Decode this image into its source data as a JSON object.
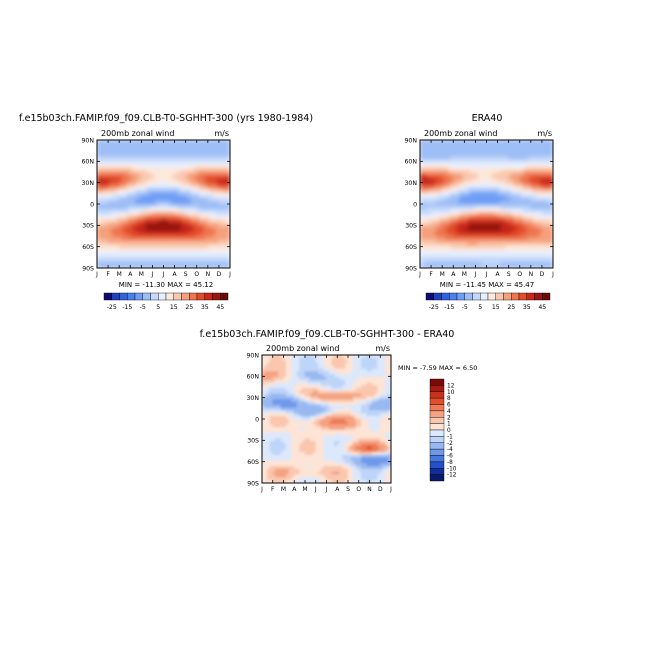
{
  "figure": {
    "shared": {
      "subtitle_left": "200mb zonal wind",
      "units": "m/s",
      "lat_ticks": [
        "90N",
        "60N",
        "30N",
        "0",
        "30S",
        "60S",
        "90S"
      ],
      "month_ticks": [
        "J",
        "F",
        "M",
        "A",
        "M",
        "J",
        "J",
        "A",
        "S",
        "O",
        "N",
        "D",
        "J"
      ]
    }
  },
  "chart_data": [
    {
      "type": "heatmap",
      "id": "model",
      "title": "f.e15b03ch.FAMIP.f09_f09.CLB-T0-SGHHT-300 (yrs 1980-1984)",
      "xlabel": "",
      "ylabel": "",
      "stats": "MIN = -11.30  MAX =  45.12",
      "min": -11.3,
      "max": 45.12,
      "colorbar": {
        "orientation": "horizontal",
        "labels": [
          "-25",
          "-15",
          "-5",
          "5",
          "15",
          "25",
          "35",
          "45"
        ],
        "levels": [
          -25,
          -20,
          -15,
          -10,
          -5,
          0,
          5,
          10,
          15,
          20,
          25,
          30,
          35,
          40,
          45
        ],
        "colors": [
          "#0d0a78",
          "#1f3fbf",
          "#2e62e0",
          "#4a80f0",
          "#6f9ef5",
          "#9dbdf6",
          "#c3d8fa",
          "#e6efff",
          "#fde8dc",
          "#f9c8ae",
          "#f5a07c",
          "#ee754f",
          "#e24b2c",
          "#c6281a",
          "#97160f",
          "#6b0b07"
        ]
      },
      "x_range": [
        "Jan",
        "Jan"
      ],
      "y_range": [
        -90,
        90
      ]
    },
    {
      "type": "heatmap",
      "id": "obs",
      "title": "ERA40",
      "xlabel": "",
      "ylabel": "",
      "stats": "MIN = -11.45  MAX =  45.47",
      "min": -11.45,
      "max": 45.47,
      "colorbar": {
        "orientation": "horizontal",
        "labels": [
          "-25",
          "-15",
          "-5",
          "5",
          "15",
          "25",
          "35",
          "45"
        ],
        "levels": [
          -25,
          -20,
          -15,
          -10,
          -5,
          0,
          5,
          10,
          15,
          20,
          25,
          30,
          35,
          40,
          45
        ],
        "colors": [
          "#0d0a78",
          "#1f3fbf",
          "#2e62e0",
          "#4a80f0",
          "#6f9ef5",
          "#9dbdf6",
          "#c3d8fa",
          "#e6efff",
          "#fde8dc",
          "#f9c8ae",
          "#f5a07c",
          "#ee754f",
          "#e24b2c",
          "#c6281a",
          "#97160f",
          "#6b0b07"
        ]
      },
      "x_range": [
        "Jan",
        "Jan"
      ],
      "y_range": [
        -90,
        90
      ]
    },
    {
      "type": "heatmap",
      "id": "diff",
      "title": "f.e15b03ch.FAMIP.f09_f09.CLB-T0-SGHHT-300 - ERA40",
      "xlabel": "",
      "ylabel": "",
      "stats": "MIN =  -7.59  MAX =   6.50",
      "min": -7.59,
      "max": 6.5,
      "colorbar": {
        "orientation": "vertical",
        "labels": [
          "12",
          "10",
          "8",
          "6",
          "4",
          "2",
          "1",
          "0",
          "-1",
          "-2",
          "-4",
          "-6",
          "-8",
          "-10",
          "-12"
        ],
        "colors": [
          "#7a0a06",
          "#a81a10",
          "#c8321c",
          "#e04e2e",
          "#ee7a56",
          "#f5a282",
          "#fac6ae",
          "#fde4d6",
          "#dce8fb",
          "#bed4f8",
          "#98b8f2",
          "#6f98ea",
          "#4877de",
          "#2250c8",
          "#0f2e9a",
          "#0a1a6a"
        ]
      },
      "x_range": [
        "Jan",
        "Jan"
      ],
      "y_range": [
        -90,
        90
      ]
    }
  ]
}
